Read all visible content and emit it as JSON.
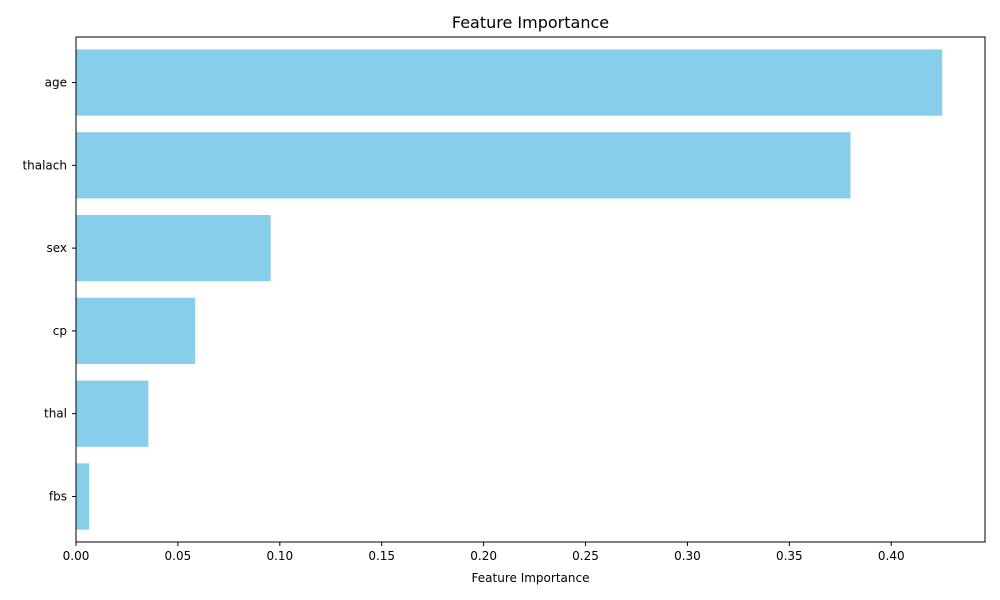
{
  "chart_data": {
    "type": "bar",
    "orientation": "horizontal",
    "title": "Feature Importance",
    "xlabel": "Feature Importance",
    "ylabel": "",
    "categories": [
      "age",
      "thalach",
      "sex",
      "cp",
      "thal",
      "fbs"
    ],
    "values": [
      0.425,
      0.38,
      0.0955,
      0.0585,
      0.0355,
      0.0065
    ],
    "xlim": [
      0,
      0.446
    ],
    "xticks": [
      "0.00",
      "0.05",
      "0.10",
      "0.15",
      "0.20",
      "0.25",
      "0.30",
      "0.35",
      "0.40"
    ],
    "bar_color": "#87CEEB",
    "grid": false,
    "legend": "none"
  }
}
